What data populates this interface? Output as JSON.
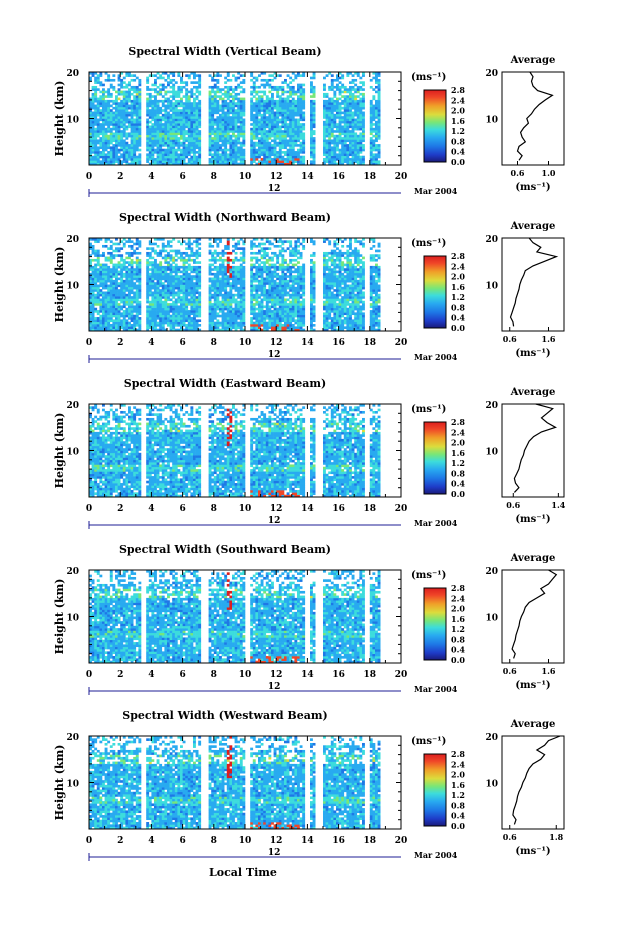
{
  "figure": {
    "x_axis_label": "Local Time",
    "date_label": "Mar 2004",
    "day_label": "12",
    "colorbar_unit": "(ms⁻¹)",
    "average_title": "Average",
    "average_unit": "(ms⁻¹)",
    "height_label": "Height (km)"
  },
  "chart_data": [
    {
      "type": "heatmap",
      "title": "Spectral Width (Vertical Beam)",
      "xlabel": "",
      "ylabel": "Height (km)",
      "xlim": [
        0,
        20
      ],
      "ylim": [
        0,
        20
      ],
      "x_ticks": [
        0,
        2,
        4,
        6,
        8,
        10,
        12,
        14,
        16,
        18,
        20
      ],
      "y_ticks": [
        10,
        20
      ],
      "colorbar": {
        "unit": "(ms⁻¹)",
        "range": [
          0.0,
          2.8
        ],
        "ticks": [
          0.0,
          0.4,
          0.8,
          1.2,
          1.6,
          2.0,
          2.4,
          2.8
        ]
      },
      "data_gaps_hours": [
        [
          3.4,
          3.7
        ],
        [
          7.1,
          7.6
        ],
        [
          10.0,
          10.3
        ],
        [
          13.9,
          14.1
        ],
        [
          14.5,
          15.0
        ],
        [
          17.6,
          18.0
        ],
        [
          18.6,
          20.0
        ]
      ],
      "average_profile": {
        "title": "Average",
        "xlabel": "(ms⁻¹)",
        "xlim": [
          0.4,
          1.2
        ],
        "x_ticks": [
          0.6,
          1.0
        ],
        "heights_km": [
          1,
          2,
          3,
          4,
          5,
          6,
          7,
          8,
          9,
          10,
          11,
          12,
          13,
          14,
          15,
          16,
          17,
          18,
          19,
          20
        ],
        "values": [
          0.62,
          0.66,
          0.6,
          0.62,
          0.7,
          0.66,
          0.64,
          0.68,
          0.74,
          0.72,
          0.78,
          0.82,
          0.88,
          0.96,
          1.05,
          0.86,
          0.8,
          0.78,
          0.8,
          0.76
        ]
      }
    },
    {
      "type": "heatmap",
      "title": "Spectral Width (Northward Beam)",
      "xlabel": "",
      "ylabel": "Height (km)",
      "xlim": [
        0,
        20
      ],
      "ylim": [
        0,
        20
      ],
      "x_ticks": [
        0,
        2,
        4,
        6,
        8,
        10,
        12,
        14,
        16,
        18,
        20
      ],
      "y_ticks": [
        10,
        20
      ],
      "colorbar": {
        "unit": "(ms⁻¹)",
        "range": [
          0.0,
          2.8
        ],
        "ticks": [
          0.0,
          0.4,
          0.8,
          1.2,
          1.6,
          2.0,
          2.4,
          2.8
        ]
      },
      "data_gaps_hours": [
        [
          3.4,
          3.7
        ],
        [
          7.1,
          7.6
        ],
        [
          10.0,
          10.3
        ],
        [
          13.9,
          14.1
        ],
        [
          14.5,
          15.0
        ],
        [
          17.6,
          18.0
        ],
        [
          18.6,
          20.0
        ]
      ],
      "average_profile": {
        "title": "Average",
        "xlabel": "(ms⁻¹)",
        "xlim": [
          0.4,
          2.0
        ],
        "x_ticks": [
          0.6,
          1.6
        ],
        "heights_km": [
          1,
          2,
          3,
          4,
          5,
          6,
          7,
          8,
          9,
          10,
          11,
          12,
          13,
          14,
          15,
          16,
          17,
          18,
          19,
          20
        ],
        "values": [
          0.7,
          0.68,
          0.62,
          0.66,
          0.7,
          0.74,
          0.76,
          0.8,
          0.84,
          0.86,
          0.9,
          0.96,
          1.0,
          1.2,
          1.5,
          1.8,
          1.3,
          1.4,
          1.2,
          1.1
        ]
      }
    },
    {
      "type": "heatmap",
      "title": "Spectral Width (Eastward Beam)",
      "xlabel": "",
      "ylabel": "Height (km)",
      "xlim": [
        0,
        20
      ],
      "ylim": [
        0,
        20
      ],
      "x_ticks": [
        0,
        2,
        4,
        6,
        8,
        10,
        12,
        14,
        16,
        18,
        20
      ],
      "y_ticks": [
        10,
        20
      ],
      "colorbar": {
        "unit": "(ms⁻¹)",
        "range": [
          0.0,
          2.8
        ],
        "ticks": [
          0.0,
          0.4,
          0.8,
          1.2,
          1.6,
          2.0,
          2.4,
          2.8
        ]
      },
      "data_gaps_hours": [
        [
          3.4,
          3.7
        ],
        [
          7.1,
          7.6
        ],
        [
          10.0,
          10.3
        ],
        [
          13.9,
          14.1
        ],
        [
          14.5,
          15.0
        ],
        [
          17.6,
          18.0
        ],
        [
          18.6,
          20.0
        ]
      ],
      "average_profile": {
        "title": "Average",
        "xlabel": "(ms⁻¹)",
        "xlim": [
          0.4,
          1.5
        ],
        "x_ticks": [
          0.6,
          1.4
        ],
        "heights_km": [
          1,
          2,
          3,
          4,
          5,
          6,
          7,
          8,
          9,
          10,
          11,
          12,
          13,
          14,
          15,
          16,
          17,
          18,
          19,
          20
        ],
        "values": [
          0.62,
          0.7,
          0.64,
          0.62,
          0.66,
          0.7,
          0.72,
          0.74,
          0.78,
          0.8,
          0.84,
          0.88,
          0.96,
          1.1,
          1.35,
          1.2,
          1.1,
          1.2,
          1.3,
          1.0
        ]
      }
    },
    {
      "type": "heatmap",
      "title": "Spectral Width (Southward Beam)",
      "xlabel": "",
      "ylabel": "Height (km)",
      "xlim": [
        0,
        20
      ],
      "ylim": [
        0,
        20
      ],
      "x_ticks": [
        0,
        2,
        4,
        6,
        8,
        10,
        12,
        14,
        16,
        18,
        20
      ],
      "y_ticks": [
        10,
        20
      ],
      "colorbar": {
        "unit": "(ms⁻¹)",
        "range": [
          0.0,
          2.8
        ],
        "ticks": [
          0.0,
          0.4,
          0.8,
          1.2,
          1.6,
          2.0,
          2.4,
          2.8
        ]
      },
      "data_gaps_hours": [
        [
          3.4,
          3.7
        ],
        [
          7.1,
          7.6
        ],
        [
          10.0,
          10.3
        ],
        [
          13.9,
          14.1
        ],
        [
          14.5,
          15.0
        ],
        [
          17.6,
          18.0
        ],
        [
          18.6,
          20.0
        ]
      ],
      "average_profile": {
        "title": "Average",
        "xlabel": "(ms⁻¹)",
        "xlim": [
          0.4,
          2.0
        ],
        "x_ticks": [
          0.6,
          1.6
        ],
        "heights_km": [
          1,
          2,
          3,
          4,
          5,
          6,
          7,
          8,
          9,
          10,
          11,
          12,
          13,
          14,
          15,
          16,
          17,
          18,
          19,
          20
        ],
        "values": [
          0.7,
          0.74,
          0.66,
          0.7,
          0.74,
          0.76,
          0.8,
          0.84,
          0.86,
          0.9,
          0.96,
          1.0,
          1.1,
          1.3,
          1.5,
          1.4,
          1.6,
          1.7,
          1.8,
          1.6
        ]
      }
    },
    {
      "type": "heatmap",
      "title": "Spectral Width (Westward Beam)",
      "xlabel": "Local Time",
      "ylabel": "Height (km)",
      "xlim": [
        0,
        20
      ],
      "ylim": [
        0,
        20
      ],
      "x_ticks": [
        0,
        2,
        4,
        6,
        8,
        10,
        12,
        14,
        16,
        18,
        20
      ],
      "y_ticks": [
        10,
        20
      ],
      "colorbar": {
        "unit": "(ms⁻¹)",
        "range": [
          0.0,
          2.8
        ],
        "ticks": [
          0.0,
          0.4,
          0.8,
          1.2,
          1.6,
          2.0,
          2.4,
          2.8
        ]
      },
      "data_gaps_hours": [
        [
          3.4,
          3.7
        ],
        [
          7.1,
          7.6
        ],
        [
          10.0,
          10.3
        ],
        [
          13.9,
          14.1
        ],
        [
          14.5,
          15.0
        ],
        [
          17.6,
          18.0
        ],
        [
          18.6,
          20.0
        ]
      ],
      "average_profile": {
        "title": "Average",
        "xlabel": "(ms⁻¹)",
        "xlim": [
          0.4,
          2.0
        ],
        "x_ticks": [
          0.6,
          1.8
        ],
        "heights_km": [
          1,
          2,
          3,
          4,
          5,
          6,
          7,
          8,
          9,
          10,
          11,
          12,
          13,
          14,
          15,
          16,
          17,
          18,
          19,
          20
        ],
        "values": [
          0.72,
          0.76,
          0.68,
          0.7,
          0.74,
          0.78,
          0.8,
          0.84,
          0.9,
          0.94,
          1.0,
          1.04,
          1.1,
          1.2,
          1.4,
          1.5,
          1.3,
          1.5,
          1.6,
          1.9
        ]
      }
    }
  ]
}
